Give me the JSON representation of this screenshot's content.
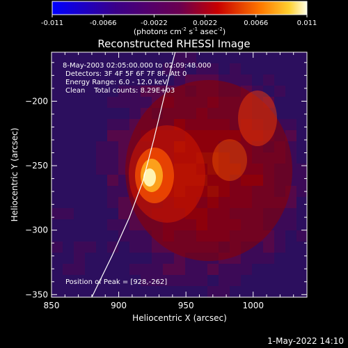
{
  "colorbar": {
    "ticks": [
      "-0.011",
      "-0.0066",
      "-0.0022",
      "0.0022",
      "0.0066",
      "0.011"
    ],
    "tick_values": [
      -0.011,
      -0.0066,
      -0.0022,
      0.0022,
      0.0066,
      0.011
    ],
    "range": [
      -0.011,
      0.011
    ],
    "units_parts": [
      "(photons cm",
      "-2",
      " s",
      "-1",
      " asec",
      "-2",
      ")"
    ]
  },
  "footer": {
    "timestamp": "1-May-2022 14:10"
  },
  "chart_data": {
    "type": "heatmap",
    "title": "Reconstructed RHESSI Image",
    "xlabel": "Heliocentric X (arcsec)",
    "ylabel": "Heliocentric Y (arcsec)",
    "xlim": [
      850,
      1040
    ],
    "ylim": [
      -352,
      -162
    ],
    "x_ticks": [
      850,
      900,
      950,
      1000
    ],
    "y_ticks": [
      -200,
      -250,
      -300,
      -350
    ],
    "x_tick_labels": [
      "850",
      "900",
      "950",
      "1000"
    ],
    "y_tick_labels": [
      "−200",
      "−250",
      "−300",
      "−350"
    ],
    "annotations": [
      "8-May-2003 02:05:00.000 to 02:09:48.000",
      "Detectors: 3F 4F 5F 6F 7F 8F, Att 0",
      "Energy Range: 6.0 - 12.0 keV",
      "Clean    Total counts: 8.29E+03"
    ],
    "peak_label": "Position of Peak = [928,-262]",
    "peak": [
      928,
      -262
    ],
    "limb_curve": [
      [
        880,
        -352
      ],
      [
        895,
        -320
      ],
      [
        908,
        -290
      ],
      [
        918,
        -262
      ],
      [
        926,
        -230
      ],
      [
        933,
        -200
      ],
      [
        940,
        -170
      ],
      [
        942,
        -162
      ]
    ],
    "grid": false
  }
}
